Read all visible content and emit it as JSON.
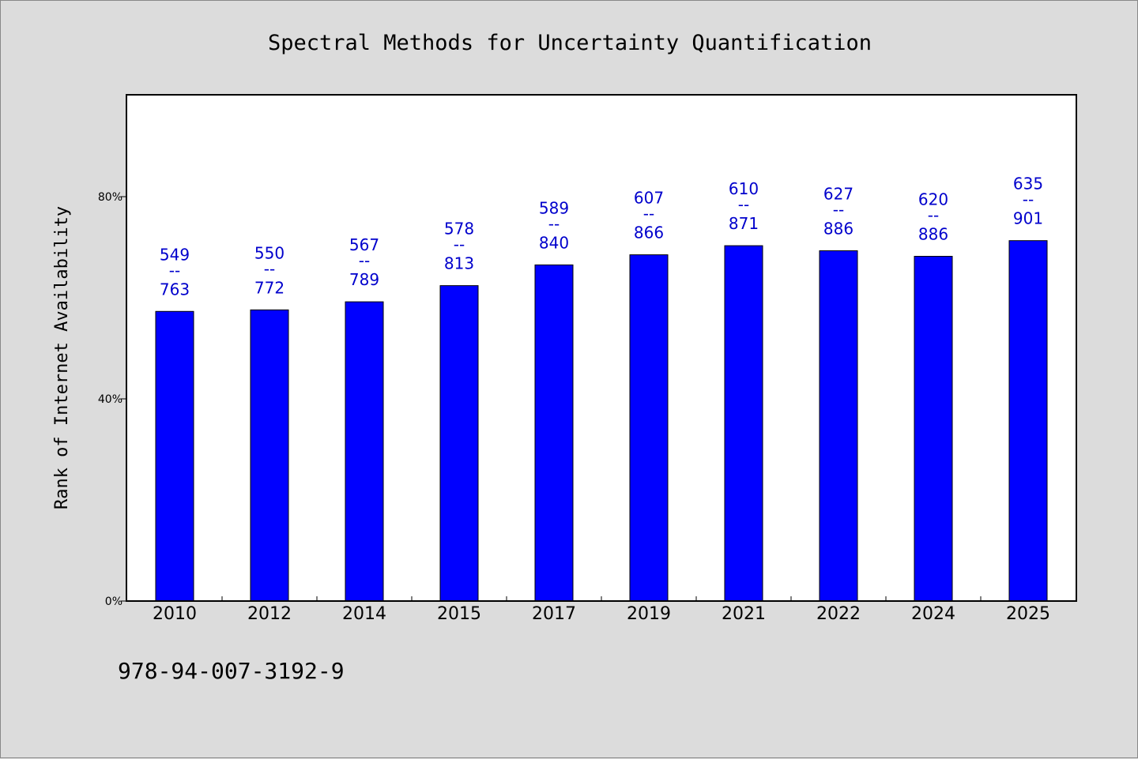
{
  "chart_data": {
    "type": "bar",
    "title": "Spectral Methods for Uncertainty Quantification",
    "xlabel": "",
    "ylabel": "Rank of Internet Availability",
    "categories": [
      "2010",
      "2012",
      "2014",
      "2015",
      "2017",
      "2019",
      "2021",
      "2022",
      "2024",
      "2025"
    ],
    "values": [
      57.3,
      57.6,
      59.2,
      62.4,
      66.5,
      68.5,
      70.3,
      69.3,
      68.2,
      71.3
    ],
    "value_unit": "%",
    "ylim": [
      0,
      100
    ],
    "yticks": [
      0,
      40,
      80
    ],
    "ytick_labels": [
      "0%",
      "40%",
      "80%"
    ],
    "bar_labels": [
      {
        "top": "549",
        "sep": "--",
        "bottom": "763"
      },
      {
        "top": "550",
        "sep": "--",
        "bottom": "772"
      },
      {
        "top": "567",
        "sep": "--",
        "bottom": "789"
      },
      {
        "top": "578",
        "sep": "--",
        "bottom": "813"
      },
      {
        "top": "589",
        "sep": "--",
        "bottom": "840"
      },
      {
        "top": "607",
        "sep": "--",
        "bottom": "866"
      },
      {
        "top": "610",
        "sep": "--",
        "bottom": "871"
      },
      {
        "top": "627",
        "sep": "--",
        "bottom": "886"
      },
      {
        "top": "620",
        "sep": "--",
        "bottom": "886"
      },
      {
        "top": "635",
        "sep": "--",
        "bottom": "901"
      }
    ],
    "grid": false,
    "legend": "none",
    "colors": {
      "bar": "#0000ff",
      "label": "#0000cc",
      "background": "#dcdcdc",
      "plot_background": "#ffffff"
    }
  },
  "footer": {
    "isbn": "978-94-007-3192-9"
  }
}
